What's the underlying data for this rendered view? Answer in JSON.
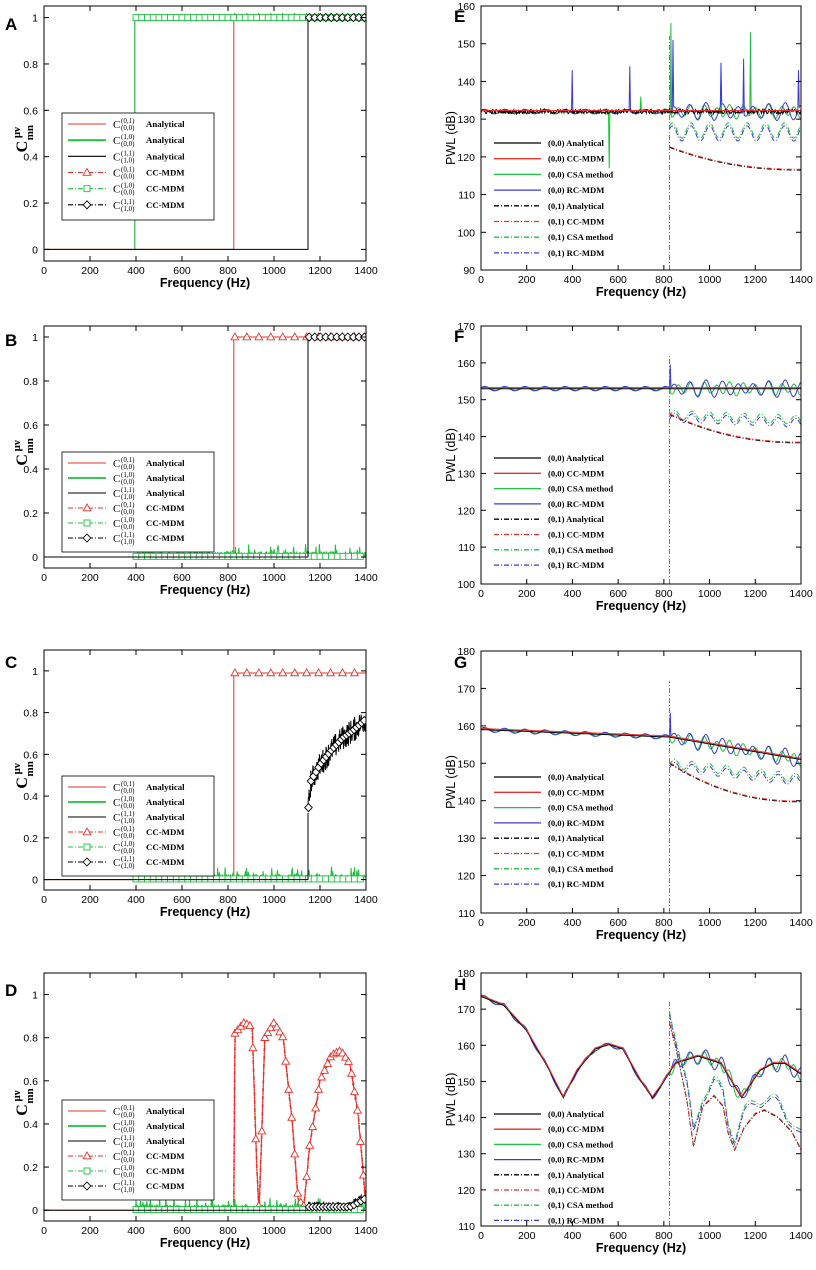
{
  "figure": {
    "colors": {
      "analytical_01": "#e8312a",
      "analytical_10": "#1fbf3f",
      "analytical_11": "#000000",
      "pwl_00_analytical": "#000000",
      "pwl_00_ccmdm": "#e8312a",
      "pwl_00_csa": "#1fbf3f",
      "pwl_00_rc": "#3a3ad8"
    }
  },
  "chart_data": [
    {
      "panel": "A",
      "type": "line",
      "xlabel": "Frequency (Hz)",
      "ylabel": "C",
      "ylabel_sup": "μν",
      "ylabel_sub": "mn",
      "xlim": [
        0,
        1400
      ],
      "ylim": [
        -0.05,
        1.05
      ],
      "xticks": [
        "0",
        "200",
        "400",
        "600",
        "800",
        "1000",
        "1200",
        "1400"
      ],
      "yticks": [
        "0",
        "0.2",
        "0.4",
        "0.6",
        "0.8",
        "1"
      ],
      "cutons": {
        "c01": 825,
        "c10": 395,
        "c11": 1148
      },
      "levels": {
        "c01": 1.0,
        "c10": 1.0,
        "c11": 1.0
      },
      "noise": {
        "c01": 0.0,
        "c10": 0.0,
        "c11": 0.0
      },
      "legend": [
        {
          "sup": "(0,1)",
          "sub": "(0,0)",
          "label": "Analytical",
          "series": "c01",
          "style": "solid"
        },
        {
          "sup": "(1,0)",
          "sub": "(0,0)",
          "label": "Analytical",
          "series": "c10",
          "style": "solid"
        },
        {
          "sup": "(1,1)",
          "sub": "(1,0)",
          "label": "Analytical",
          "series": "c11",
          "style": "solid"
        },
        {
          "sup": "(0,1)",
          "sub": "(0,0)",
          "label": "CC-MDM",
          "series": "c01",
          "style": "triangle"
        },
        {
          "sup": "(1,0)",
          "sub": "(0,0)",
          "label": "CC-MDM",
          "series": "c10",
          "style": "square"
        },
        {
          "sup": "(1,1)",
          "sub": "(1,0)",
          "label": "CC-MDM",
          "series": "c11",
          "style": "diamond"
        }
      ]
    },
    {
      "panel": "B",
      "type": "line",
      "xlabel": "Frequency (Hz)",
      "ylabel": "C",
      "ylabel_sup": "μν",
      "ylabel_sub": "mn",
      "xlim": [
        0,
        1400
      ],
      "ylim": [
        -0.05,
        1.05
      ],
      "xticks": [
        "0",
        "200",
        "400",
        "600",
        "800",
        "1000",
        "1200",
        "1400"
      ],
      "yticks": [
        "0",
        "0.2",
        "0.4",
        "0.6",
        "0.8",
        "1"
      ],
      "cutons": {
        "c01": 825,
        "c10": 395,
        "c11": 1148
      },
      "levels": {
        "c01": 1.0,
        "c10": 0.0,
        "c11": 1.0
      },
      "noise": {
        "c01": 0.0,
        "c10": 0.035,
        "c11": 0.0
      },
      "legend": [
        {
          "sup": "(0,1)",
          "sub": "(0,0)",
          "label": "Analytical",
          "series": "c01",
          "style": "solid"
        },
        {
          "sup": "(1,0)",
          "sub": "(0,0)",
          "label": "Analytical",
          "series": "c10",
          "style": "solid"
        },
        {
          "sup": "(1,1)",
          "sub": "(1,0)",
          "label": "Analytical",
          "series": "c11",
          "style": "solid"
        },
        {
          "sup": "(0,1)",
          "sub": "(0,0)",
          "label": "CC-MDM",
          "series": "c01",
          "style": "triangle"
        },
        {
          "sup": "(1,0)",
          "sub": "(0,0)",
          "label": "CC-MDM",
          "series": "c10",
          "style": "square"
        },
        {
          "sup": "(1,1)",
          "sub": "(1,0)",
          "label": "CC-MDM",
          "series": "c11",
          "style": "diamond"
        }
      ]
    },
    {
      "panel": "C",
      "type": "line",
      "xlabel": "Frequency (Hz)",
      "ylabel": "C",
      "ylabel_sup": "μν",
      "ylabel_sub": "mn",
      "xlim": [
        0,
        1400
      ],
      "ylim": [
        -0.05,
        1.1
      ],
      "xticks": [
        "0",
        "200",
        "400",
        "600",
        "800",
        "1000",
        "1200",
        "1400"
      ],
      "yticks": [
        "0",
        "0.2",
        "0.4",
        "0.6",
        "0.8",
        "1"
      ],
      "cutons": {
        "c01": 825,
        "c10": 395,
        "c11": 1148
      },
      "levels": {
        "c01": 0.99,
        "c10": 0.0,
        "c11": "rise"
      },
      "c11_curve": [
        [
          1148,
          0.32
        ],
        [
          1160,
          0.47
        ],
        [
          1200,
          0.55
        ],
        [
          1250,
          0.62
        ],
        [
          1300,
          0.68
        ],
        [
          1350,
          0.72
        ],
        [
          1400,
          0.77
        ]
      ],
      "noise": {
        "c01": 0.0,
        "c10": 0.035,
        "c11": 0.06
      },
      "legend": [
        {
          "sup": "(0,1)",
          "sub": "(0,0)",
          "label": "Analytical",
          "series": "c01",
          "style": "solid"
        },
        {
          "sup": "(1,0)",
          "sub": "(0,0)",
          "label": "Analytical",
          "series": "c10",
          "style": "solid"
        },
        {
          "sup": "(1,1)",
          "sub": "(1,0)",
          "label": "Analytical",
          "series": "c11",
          "style": "solid"
        },
        {
          "sup": "(0,1)",
          "sub": "(0,0)",
          "label": "CC-MDM",
          "series": "c01",
          "style": "triangle"
        },
        {
          "sup": "(1,0)",
          "sub": "(0,0)",
          "label": "CC-MDM",
          "series": "c10",
          "style": "square"
        },
        {
          "sup": "(1,1)",
          "sub": "(1,0)",
          "label": "CC-MDM",
          "series": "c11",
          "style": "diamond"
        }
      ]
    },
    {
      "panel": "D",
      "type": "line",
      "xlabel": "Frequency (Hz)",
      "ylabel": "C",
      "ylabel_sup": "μν",
      "ylabel_sub": "mn",
      "xlim": [
        0,
        1400
      ],
      "ylim": [
        -0.05,
        1.1
      ],
      "xticks": [
        "0",
        "200",
        "400",
        "600",
        "800",
        "1000",
        "1200",
        "1400"
      ],
      "yticks": [
        "0",
        "0.2",
        "0.4",
        "0.6",
        "0.8",
        "1"
      ],
      "cutons": {
        "c01": 825,
        "c10": 395,
        "c11": 1148
      },
      "c01_curve": [
        [
          825,
          0.0
        ],
        [
          830,
          0.82
        ],
        [
          870,
          0.87
        ],
        [
          905,
          0.85
        ],
        [
          925,
          0.2
        ],
        [
          935,
          0.0
        ],
        [
          945,
          0.3
        ],
        [
          960,
          0.8
        ],
        [
          1000,
          0.87
        ],
        [
          1040,
          0.8
        ],
        [
          1080,
          0.4
        ],
        [
          1105,
          0.05
        ],
        [
          1130,
          0.02
        ],
        [
          1155,
          0.3
        ],
        [
          1200,
          0.6
        ],
        [
          1250,
          0.72
        ],
        [
          1290,
          0.74
        ],
        [
          1330,
          0.68
        ],
        [
          1365,
          0.45
        ],
        [
          1390,
          0.15
        ],
        [
          1400,
          0.0
        ]
      ],
      "noise": {
        "c01": 0.0,
        "c10": 0.035,
        "c11": 0.02
      },
      "legend": [
        {
          "sup": "(0,1)",
          "sub": "(0,0)",
          "label": "Analytical",
          "series": "c01",
          "style": "solid"
        },
        {
          "sup": "(1,0)",
          "sub": "(0,0)",
          "label": "Analytical",
          "series": "c10",
          "style": "solid"
        },
        {
          "sup": "(1,1)",
          "sub": "(1,0)",
          "label": "Analytical",
          "series": "c11",
          "style": "solid"
        },
        {
          "sup": "(0,1)",
          "sub": "(0,0)",
          "label": "CC-MDM",
          "series": "c01",
          "style": "triangle"
        },
        {
          "sup": "(1,0)",
          "sub": "(0,0)",
          "label": "CC-MDM",
          "series": "c10",
          "style": "square"
        },
        {
          "sup": "(1,1)",
          "sub": "(1,0)",
          "label": "CC-MDM",
          "series": "c11",
          "style": "diamond"
        }
      ]
    },
    {
      "panel": "E",
      "type": "line",
      "xlabel": "Frequency (Hz)",
      "ylabel": "PWL (dB)",
      "xlim": [
        0,
        1400
      ],
      "ylim": [
        90,
        160
      ],
      "xticks": [
        "0",
        "200",
        "400",
        "600",
        "800",
        "1000",
        "1200",
        "1400"
      ],
      "yticks": [
        "90",
        "100",
        "110",
        "120",
        "130",
        "140",
        "150",
        "160"
      ],
      "cuton": 825,
      "mode00": {
        "analytical": 132,
        "ccmdm": 132.5,
        "csa_mean": 132,
        "csa_spikes": [
          [
            560,
            117
          ],
          [
            830,
            155.5
          ],
          [
            1180,
            153
          ],
          [
            1050,
            141
          ],
          [
            700,
            136
          ]
        ],
        "rc_spikes": [
          [
            400,
            143
          ],
          [
            650,
            144
          ],
          [
            840,
            151
          ],
          [
            1050,
            145
          ],
          [
            1150,
            146
          ],
          [
            1390,
            143
          ]
        ]
      },
      "mode01": {
        "start": 122.5,
        "end": 116.5,
        "csa_start": 127,
        "csa_end": 128,
        "rc_start": 126,
        "rc_end": 124
      },
      "legend": [
        {
          "label": "(0,0) Analytical",
          "color": "#000000",
          "dash": "none"
        },
        {
          "label": "(0,0) CC-MDM",
          "color": "#e8312a",
          "dash": "none"
        },
        {
          "label": "(0,0) CSA method",
          "color": "#1fbf3f",
          "dash": "none"
        },
        {
          "label": "(0,0) RC-MDM",
          "color": "#3a3ad8",
          "dash": "none"
        },
        {
          "label": "(0,1) Analytical",
          "color": "#000000",
          "dash": "dashdot"
        },
        {
          "label": "(0,1) CC-MDM",
          "color": "#e8312a",
          "dash": "dashdot"
        },
        {
          "label": "(0,1) CSA method",
          "color": "#1fbf3f",
          "dash": "dashdot"
        },
        {
          "label": "(0,1) RC-MDM",
          "color": "#3a3ad8",
          "dash": "dashdot"
        }
      ]
    },
    {
      "panel": "F",
      "type": "line",
      "xlabel": "Frequency (Hz)",
      "ylabel": "PWL (dB)",
      "xlim": [
        0,
        1400
      ],
      "ylim": [
        100,
        170
      ],
      "xticks": [
        "0",
        "200",
        "400",
        "600",
        "800",
        "1000",
        "1200",
        "1400"
      ],
      "yticks": [
        "100",
        "110",
        "120",
        "130",
        "140",
        "150",
        "160",
        "170"
      ],
      "cuton": 825,
      "mode00": {
        "analytical": 153,
        "rc_spike": 159.5
      },
      "mode01": {
        "start": 146,
        "end": 138.3,
        "csa_end": 144.5
      },
      "legend": [
        {
          "label": "(0,0) Analytical",
          "color": "#000000",
          "dash": "none"
        },
        {
          "label": "(0,0) CC-MDM",
          "color": "#e8312a",
          "dash": "none"
        },
        {
          "label": "(0,0) CSA method",
          "color": "#1fbf3f",
          "dash": "none"
        },
        {
          "label": "(0,0) RC-MDM",
          "color": "#3a3ad8",
          "dash": "none"
        },
        {
          "label": "(0,1) Analytical",
          "color": "#000000",
          "dash": "dashdot"
        },
        {
          "label": "(0,1) CC-MDM",
          "color": "#e8312a",
          "dash": "dashdot"
        },
        {
          "label": "(0,1) CSA method",
          "color": "#1fbf3f",
          "dash": "dashdot"
        },
        {
          "label": "(0,1) RC-MDM",
          "color": "#3a3ad8",
          "dash": "dashdot"
        }
      ]
    },
    {
      "panel": "G",
      "type": "line",
      "xlabel": "Frequency (Hz)",
      "ylabel": "PWL (dB)",
      "xlim": [
        0,
        1400
      ],
      "ylim": [
        110,
        180
      ],
      "xticks": [
        "0",
        "200",
        "400",
        "600",
        "800",
        "1000",
        "1200",
        "1400"
      ],
      "yticks": [
        "110",
        "120",
        "130",
        "140",
        "150",
        "160",
        "170",
        "180"
      ],
      "cuton": 825,
      "mode00": {
        "start": 159,
        "mid": 157,
        "end": 151,
        "rc_spike": 163.5
      },
      "mode01": {
        "start": 150,
        "end": 139.7,
        "csa_end": 146
      },
      "legend": [
        {
          "label": "(0,0) Analytical",
          "color": "#000000",
          "dash": "none"
        },
        {
          "label": "(0,0) CC-MDM",
          "color": "#e8312a",
          "dash": "none"
        },
        {
          "label": "(0,0) CSA method",
          "color": "#1fbf3f",
          "dash": "none"
        },
        {
          "label": "(0,0) RC-MDM",
          "color": "#3a3ad8",
          "dash": "none"
        },
        {
          "label": "(0,1) Analytical",
          "color": "#000000",
          "dash": "dashdot"
        },
        {
          "label": "(0,1) CC-MDM",
          "color": "#e8312a",
          "dash": "dashdot"
        },
        {
          "label": "(0,1) CSA method",
          "color": "#1fbf3f",
          "dash": "dashdot"
        },
        {
          "label": "(0,1) RC-MDM",
          "color": "#3a3ad8",
          "dash": "dashdot"
        }
      ]
    },
    {
      "panel": "H",
      "type": "line",
      "xlabel": "Frequency (Hz)",
      "ylabel": "PWL (dB)",
      "xlim": [
        0,
        1400
      ],
      "ylim": [
        110,
        180
      ],
      "xticks": [
        "0",
        "200",
        "400",
        "600",
        "800",
        "1000",
        "1200",
        "1400"
      ],
      "yticks": [
        "110",
        "120",
        "130",
        "140",
        "150",
        "160",
        "170",
        "180"
      ],
      "cuton": 825,
      "mode00_curve": [
        [
          0,
          173.5
        ],
        [
          100,
          171
        ],
        [
          200,
          164
        ],
        [
          300,
          153
        ],
        [
          360,
          145.5
        ],
        [
          420,
          153
        ],
        [
          500,
          159
        ],
        [
          560,
          160.2
        ],
        [
          620,
          159
        ],
        [
          700,
          150
        ],
        [
          750,
          145.5
        ],
        [
          790,
          149
        ],
        [
          850,
          155
        ],
        [
          950,
          157
        ],
        [
          1050,
          155
        ],
        [
          1140,
          145.5
        ],
        [
          1220,
          153
        ],
        [
          1280,
          155
        ],
        [
          1330,
          155
        ],
        [
          1400,
          152
        ]
      ],
      "mode01_curve": [
        [
          825,
          166
        ],
        [
          850,
          160
        ],
        [
          900,
          145
        ],
        [
          930,
          132
        ],
        [
          970,
          143
        ],
        [
          1020,
          146
        ],
        [
          1060,
          143
        ],
        [
          1080,
          136
        ],
        [
          1110,
          131
        ],
        [
          1150,
          137
        ],
        [
          1200,
          141
        ],
        [
          1240,
          142
        ],
        [
          1300,
          140
        ],
        [
          1360,
          136
        ],
        [
          1400,
          131
        ]
      ],
      "legend": [
        {
          "label": "(0,0) Analytical",
          "color": "#000000",
          "dash": "none"
        },
        {
          "label": "(0,0) CC-MDM",
          "color": "#e8312a",
          "dash": "none"
        },
        {
          "label": "(0,0) CSA method",
          "color": "#1fbf3f",
          "dash": "none"
        },
        {
          "label": "(0,0) RC-MDM",
          "color": "#3a3ad8",
          "dash": "none"
        },
        {
          "label": "(0,1) Analytical",
          "color": "#000000",
          "dash": "dashdot"
        },
        {
          "label": "(0,1) CC-MDM",
          "color": "#e8312a",
          "dash": "dashdot"
        },
        {
          "label": "(0,1) CSA method",
          "color": "#1fbf3f",
          "dash": "dashdot"
        },
        {
          "label": "(0,1) RC-MDM",
          "color": "#3a3ad8",
          "dash": "dashdot"
        }
      ]
    }
  ]
}
